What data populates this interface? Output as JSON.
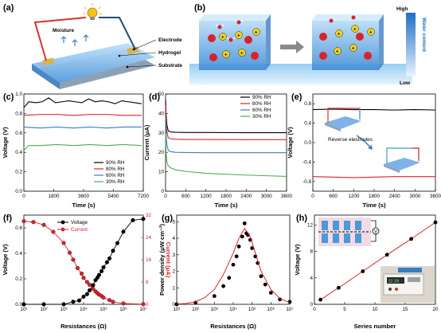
{
  "panels": {
    "a": {
      "label": "(a)",
      "callouts": [
        "Moisture",
        "Electrode",
        "Hydrogel",
        "Substrate"
      ],
      "colors": {
        "hydrogel": "#7fb2e8",
        "substrate": "#8da1b6",
        "electrode": "#d9b34a",
        "wire_pos": "#d3332f",
        "wire_neg": "#1f4e79"
      }
    },
    "b": {
      "label": "(b)",
      "gradient_top": "High",
      "gradient_bottom": "Low",
      "gradient_title": "Water content",
      "colors": {
        "cation": "#f2d21b",
        "anion": "#d8232a",
        "water_o": "#d8232a",
        "water_h": "#f2f2f2"
      }
    },
    "c": {
      "label": "(c)",
      "chart_data": {
        "type": "line",
        "xlabel": "Time (s)",
        "ylabel": "Voltage (V)",
        "xlim": [
          0,
          7200
        ],
        "ylim": [
          0,
          1.0
        ],
        "xticks": [
          0,
          1800,
          3600,
          5400,
          7200
        ],
        "yticks": [
          0.0,
          0.2,
          0.4,
          0.6,
          0.8,
          1.0
        ],
        "legend_position": "bottom-right",
        "series": [
          {
            "name": "90% RH",
            "color": "#000000",
            "x": [
              0,
              300,
              700,
              1100,
              1500,
              1900,
              2300,
              2700,
              3100,
              3500,
              3900,
              4300,
              4700,
              5100,
              5500,
              5900,
              6300,
              6700,
              7100
            ],
            "y": [
              0.86,
              0.92,
              0.91,
              0.92,
              0.96,
              0.91,
              0.92,
              0.93,
              0.92,
              0.91,
              0.95,
              0.92,
              0.93,
              0.92,
              0.9,
              0.93,
              0.92,
              0.91,
              0.9
            ]
          },
          {
            "name": "80% RH",
            "color": "#d8232a",
            "x": [
              0,
              1000,
              2000,
              3000,
              4000,
              5000,
              6000,
              7100
            ],
            "y": [
              0.78,
              0.79,
              0.79,
              0.78,
              0.79,
              0.79,
              0.78,
              0.78
            ]
          },
          {
            "name": "60% RH",
            "color": "#3a7cc4",
            "x": [
              0,
              1000,
              2000,
              3000,
              4000,
              5000,
              6000,
              7100
            ],
            "y": [
              0.66,
              0.65,
              0.66,
              0.65,
              0.66,
              0.65,
              0.66,
              0.66
            ]
          },
          {
            "name": "30% RH",
            "color": "#4caf50",
            "x": [
              0,
              300,
              1000,
              2000,
              3000,
              4000,
              5000,
              6000,
              7100
            ],
            "y": [
              0.42,
              0.47,
              0.47,
              0.48,
              0.47,
              0.48,
              0.47,
              0.48,
              0.47
            ]
          }
        ]
      }
    },
    "d": {
      "label": "(d)",
      "chart_data": {
        "type": "line",
        "xlabel": "Time (s)",
        "ylabel": "Current (μA)",
        "xlim": [
          0,
          3600
        ],
        "ylim": [
          0,
          50
        ],
        "xticks": [
          0,
          600,
          1200,
          1800,
          2400,
          3000,
          3600
        ],
        "yticks": [
          0,
          10,
          20,
          30,
          40,
          50
        ],
        "legend_position": "top-right",
        "series": [
          {
            "name": "90% RH",
            "color": "#000000",
            "x": [
              0,
              15,
              40,
              80,
              150,
              300,
              600,
              1200,
              2400,
              3600
            ],
            "y": [
              47,
              40,
              34,
              31,
              30.5,
              30.3,
              30.2,
              30.2,
              30.1,
              30.1
            ]
          },
          {
            "name": "80% RH",
            "color": "#d8232a",
            "x": [
              0,
              15,
              40,
              80,
              150,
              300,
              600,
              1200,
              2400,
              3600
            ],
            "y": [
              44,
              36,
              30,
              27.5,
              27,
              26.7,
              26.6,
              26.6,
              26.5,
              26.5
            ]
          },
          {
            "name": "60% RH",
            "color": "#3a7cc4",
            "x": [
              0,
              15,
              40,
              80,
              150,
              300,
              600,
              1200,
              2400,
              3600
            ],
            "y": [
              38,
              29,
              24,
              21,
              20.3,
              20,
              19.9,
              19.8,
              19.8,
              19.8
            ]
          },
          {
            "name": "30% RH",
            "color": "#4caf50",
            "x": [
              0,
              15,
              40,
              80,
              150,
              300,
              600,
              1200,
              2400,
              3600
            ],
            "y": [
              30,
              20,
              15,
              13,
              12,
              11,
              10.2,
              9.2,
              8.3,
              7.6
            ]
          }
        ]
      }
    },
    "e": {
      "label": "(e)",
      "annotation": "Reverse electrodes",
      "chart_data": {
        "type": "line",
        "xlabel": "Time (s)",
        "ylabel": "Voltage (V)",
        "xlim": [
          0,
          3600
        ],
        "ylim": [
          -1.0,
          1.0
        ],
        "xticks": [
          0,
          600,
          1200,
          1800,
          2400,
          3000,
          3600
        ],
        "yticks": [
          -0.8,
          -0.4,
          0.0,
          0.4,
          0.8
        ],
        "series": [
          {
            "color": "#000000",
            "x": [
              0,
              600,
              1200,
              1800,
              2400,
              3000,
              3600
            ],
            "y": [
              0.68,
              0.69,
              0.68,
              0.68,
              0.67,
              0.68,
              0.67
            ]
          },
          {
            "color": "#d8232a",
            "x": [
              0,
              600,
              1200,
              1800,
              2400,
              3000,
              3600
            ],
            "y": [
              -0.7,
              -0.71,
              -0.72,
              -0.71,
              -0.7,
              -0.7,
              -0.7
            ]
          }
        ]
      }
    },
    "f": {
      "label": "(f)",
      "chart_data": {
        "type": "scatter",
        "xlabel": "Resistances (Ω)",
        "ylabel": "Voltage (V)",
        "y2label": "Current (μA)",
        "xscale": "log",
        "xlim": [
          10,
          10000000
        ],
        "ylim": [
          0,
          0.7
        ],
        "y2lim": [
          0,
          32
        ],
        "xticks": [
          "10¹",
          "10²",
          "10³",
          "10⁴",
          "10⁵",
          "10⁶",
          "10⁷"
        ],
        "yticks": [
          0.0,
          0.2,
          0.4,
          0.6
        ],
        "y2ticks": [
          0,
          8,
          16,
          24,
          32
        ],
        "legend_position": "top-center",
        "series": [
          {
            "name": "Voltage",
            "color": "#000000",
            "axis": "left",
            "x": [
              10,
              100,
              1000,
              3000,
              6000,
              10000,
              15000,
              20000,
              30000,
              40000,
              50000,
              60000,
              80000,
              100000,
              150000,
              200000,
              300000,
              500000,
              1000000,
              3000000,
              10000000
            ],
            "y": [
              0.0,
              0.0,
              0.0,
              0.02,
              0.03,
              0.06,
              0.08,
              0.11,
              0.15,
              0.19,
              0.21,
              0.23,
              0.26,
              0.29,
              0.33,
              0.36,
              0.42,
              0.48,
              0.57,
              0.66,
              0.67
            ]
          },
          {
            "name": "Current",
            "color": "#d8232a",
            "axis": "right",
            "x": [
              10,
              30,
              100,
              300,
              1000,
              2000,
              3000,
              5000,
              8000,
              10000,
              15000,
              20000,
              30000,
              40000,
              50000,
              60000,
              80000,
              100000,
              200000,
              300000,
              1000000,
              10000000
            ],
            "y": [
              29.8,
              29.5,
              28.5,
              26,
              22,
              18.5,
              16,
              13,
              11,
              9.5,
              8,
              7,
              5.6,
              4.6,
              4.0,
              3.5,
              3.0,
              2.4,
              1.5,
              0.9,
              0.3,
              0.05
            ]
          }
        ]
      }
    },
    "g": {
      "label": "(g)",
      "chart_data": {
        "type": "scatter",
        "xlabel": "Resistances (Ω)",
        "ylabel": "Power density (μW cm⁻²)",
        "xscale": "log",
        "xlim": [
          10,
          10000000
        ],
        "ylim": [
          0,
          5.4
        ],
        "xticks": [
          "10¹",
          "10²",
          "10³",
          "10⁴",
          "10⁵",
          "10⁶",
          "10⁷"
        ],
        "yticks": [
          0,
          1,
          2,
          3,
          4,
          5
        ],
        "series": [
          {
            "name": "Power density",
            "color": "#000000",
            "x": [
              10,
              100,
              1000,
              3000,
              6000,
              10000,
              15000,
              20000,
              30000,
              40000,
              50000,
              60000,
              80000,
              100000,
              150000,
              200000,
              300000,
              500000,
              1000000,
              3000000,
              10000000
            ],
            "y": [
              0.0,
              0.1,
              0.5,
              1.1,
              1.6,
              2.4,
              2.9,
              3.5,
              4.1,
              4.9,
              4.3,
              4.2,
              3.9,
              3.4,
              2.9,
              2.5,
              1.7,
              1.2,
              0.7,
              0.3,
              0.15
            ]
          },
          {
            "name": "Fit",
            "color": "#d8232a",
            "kind": "line",
            "x": [
              10,
              30,
              100,
              300,
              1000,
              3000,
              10000,
              20000,
              40000,
              80000,
              150000,
              300000,
              1000000,
              3000000,
              10000000
            ],
            "y": [
              0.02,
              0.05,
              0.15,
              0.4,
              0.9,
              1.8,
              3.1,
              4.0,
              4.6,
              4.1,
              3.1,
              2.0,
              0.9,
              0.35,
              0.1
            ]
          }
        ]
      }
    },
    "h": {
      "label": "(h)",
      "instrument_reading": "12.39",
      "chart_data": {
        "type": "line",
        "xlabel": "Series number",
        "ylabel": "Voltage (V)",
        "xlim": [
          0,
          20
        ],
        "ylim": [
          0,
          13.5
        ],
        "xticks": [
          0,
          5,
          10,
          15,
          20
        ],
        "yticks": [
          0,
          4,
          8,
          12
        ],
        "series": [
          {
            "color": "#d8232a",
            "x": [
              1,
              4,
              8,
              12,
              16,
              20
            ],
            "y": [
              0.7,
              2.5,
              5.0,
              7.5,
              9.9,
              12.4
            ]
          }
        ]
      }
    }
  }
}
